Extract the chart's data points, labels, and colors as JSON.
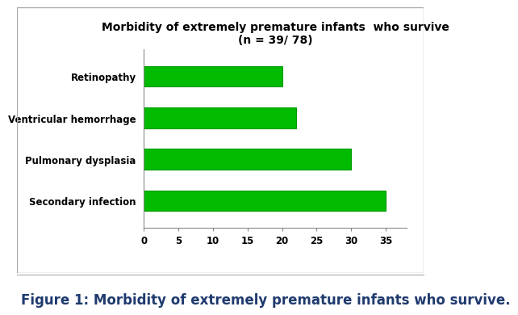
{
  "categories": [
    "Secondary infection",
    "Pulmonary dysplasia",
    "Ventricular hemorrhage",
    "Retinopathy"
  ],
  "values": [
    35,
    30,
    22,
    20
  ],
  "bar_color": "#00BB00",
  "title_line1": "Morbidity of extremely premature infants  who survive",
  "title_line2": "(n = 39/ 78)",
  "xlim": [
    0,
    38
  ],
  "xticks": [
    0,
    5,
    10,
    15,
    20,
    25,
    30,
    35
  ],
  "bar_height": 0.5,
  "figure_caption": "Figure 1: Morbidity of extremely premature infants who survive.",
  "background_color": "#ffffff",
  "plot_bg_color": "#ffffff",
  "tick_label_fontsize": 8.5,
  "title_fontsize": 10,
  "caption_fontsize": 12,
  "caption_color": "#1f3a6e"
}
